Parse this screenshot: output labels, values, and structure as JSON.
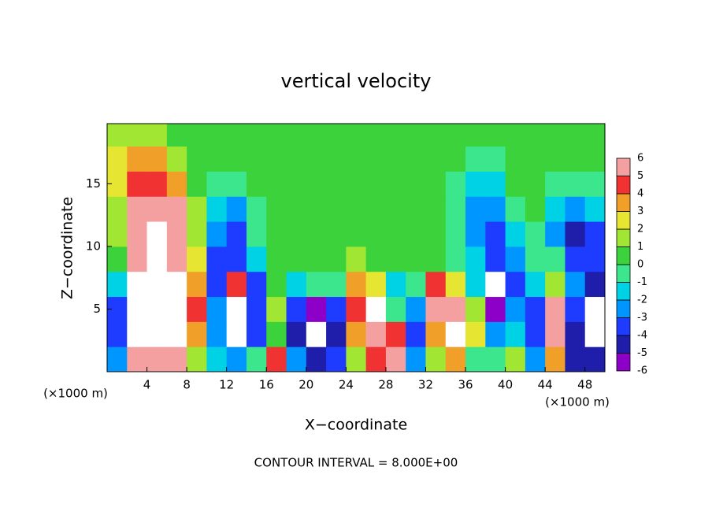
{
  "chart_data": {
    "type": "heatmap",
    "title": "vertical velocity",
    "x_label": "X−coordinate",
    "y_label": "Z−coordinate",
    "x_unit_label": "(×1000 m)",
    "footer": "CONTOUR INTERVAL = 8.000E+00",
    "xlim": [
      0,
      50
    ],
    "ylim": [
      0,
      19.8
    ],
    "xticks": [
      4,
      8,
      12,
      16,
      20,
      24,
      28,
      32,
      36,
      40,
      44,
      48
    ],
    "yticks": [
      5,
      10,
      15
    ],
    "x": [
      1,
      3,
      5,
      7,
      9,
      11,
      13,
      15,
      17,
      19,
      21,
      23,
      25,
      27,
      29,
      31,
      33,
      35,
      37,
      39,
      41,
      43,
      45,
      47,
      49
    ],
    "z": [
      1,
      3,
      5,
      7,
      9,
      11,
      13,
      15,
      17,
      19
    ],
    "values": [
      [
        -3,
        5,
        5,
        5,
        1,
        -2,
        -3,
        -1,
        4,
        -3,
        -5,
        -4,
        1,
        4,
        5,
        -3,
        1,
        3,
        -1,
        -1,
        1,
        -3,
        3,
        -5,
        -5
      ],
      [
        -4,
        7,
        9,
        8,
        3,
        -3,
        7,
        -4,
        0,
        -5,
        -8,
        -5,
        3,
        6,
        4,
        -4,
        3,
        7,
        2,
        -3,
        -2,
        -4,
        6,
        -5,
        -8
      ],
      [
        -4,
        7,
        10,
        8,
        4,
        -3,
        8,
        -4,
        1,
        -4,
        -6,
        -4,
        4,
        7,
        -1,
        -3,
        5,
        5,
        1,
        -6,
        -3,
        -4,
        5,
        -4,
        -8
      ],
      [
        -2,
        7,
        9,
        7,
        3,
        -4,
        4,
        -4,
        0,
        -2,
        -1,
        -1,
        3,
        2,
        -2,
        -1,
        4,
        2,
        -2,
        -8,
        -4,
        -2,
        1,
        -3,
        -5
      ],
      [
        0,
        6,
        8,
        6,
        2,
        -4,
        -4,
        -2,
        0,
        0,
        0,
        0,
        1,
        0,
        0,
        0,
        0,
        -1,
        -2,
        -4,
        -3,
        -1,
        -1,
        -4,
        -4
      ],
      [
        1,
        6,
        8,
        6,
        1,
        -3,
        -4,
        -1,
        0,
        0,
        0,
        0,
        0,
        0,
        0,
        0,
        0,
        -1,
        -3,
        -4,
        -2,
        -1,
        -3,
        -5,
        -4
      ],
      [
        1,
        5,
        6,
        5,
        1,
        -2,
        -3,
        -1,
        0,
        0,
        0.5,
        0.5,
        0,
        0,
        0,
        0,
        0,
        -1,
        -3,
        -3,
        -1,
        0,
        -2,
        -3,
        -2
      ],
      [
        2,
        4,
        4,
        3,
        0,
        -1,
        -1,
        0,
        0,
        0,
        0.5,
        0.5,
        0.5,
        0,
        0,
        0,
        0,
        -1,
        -2,
        -2,
        0,
        0,
        -1,
        -1,
        -1
      ],
      [
        2,
        3,
        3,
        1,
        0,
        0,
        0,
        0,
        0,
        0,
        0.5,
        0.5,
        0.5,
        0,
        0,
        0,
        0,
        0,
        -1,
        -1,
        0,
        0,
        0,
        0,
        0
      ],
      [
        1,
        1,
        1,
        0,
        0,
        0,
        0,
        0,
        0,
        0,
        0.5,
        0.5,
        0.5,
        0,
        0,
        0,
        0,
        0,
        0,
        0,
        0,
        0,
        0,
        0,
        0
      ]
    ],
    "colorbar_levels": [
      -6,
      -5,
      -4,
      -3,
      -2,
      -1,
      0,
      1,
      2,
      3,
      4,
      5,
      6
    ],
    "colors": [
      "#8c00c8",
      "#1e1eaa",
      "#1e3cff",
      "#0096ff",
      "#00d2e6",
      "#3ce68c",
      "#3cd23c",
      "#a0e632",
      "#e6e632",
      "#f0a028",
      "#f03232",
      "#f4a0a0"
    ],
    "out_of_range_color": "#ffffff"
  }
}
